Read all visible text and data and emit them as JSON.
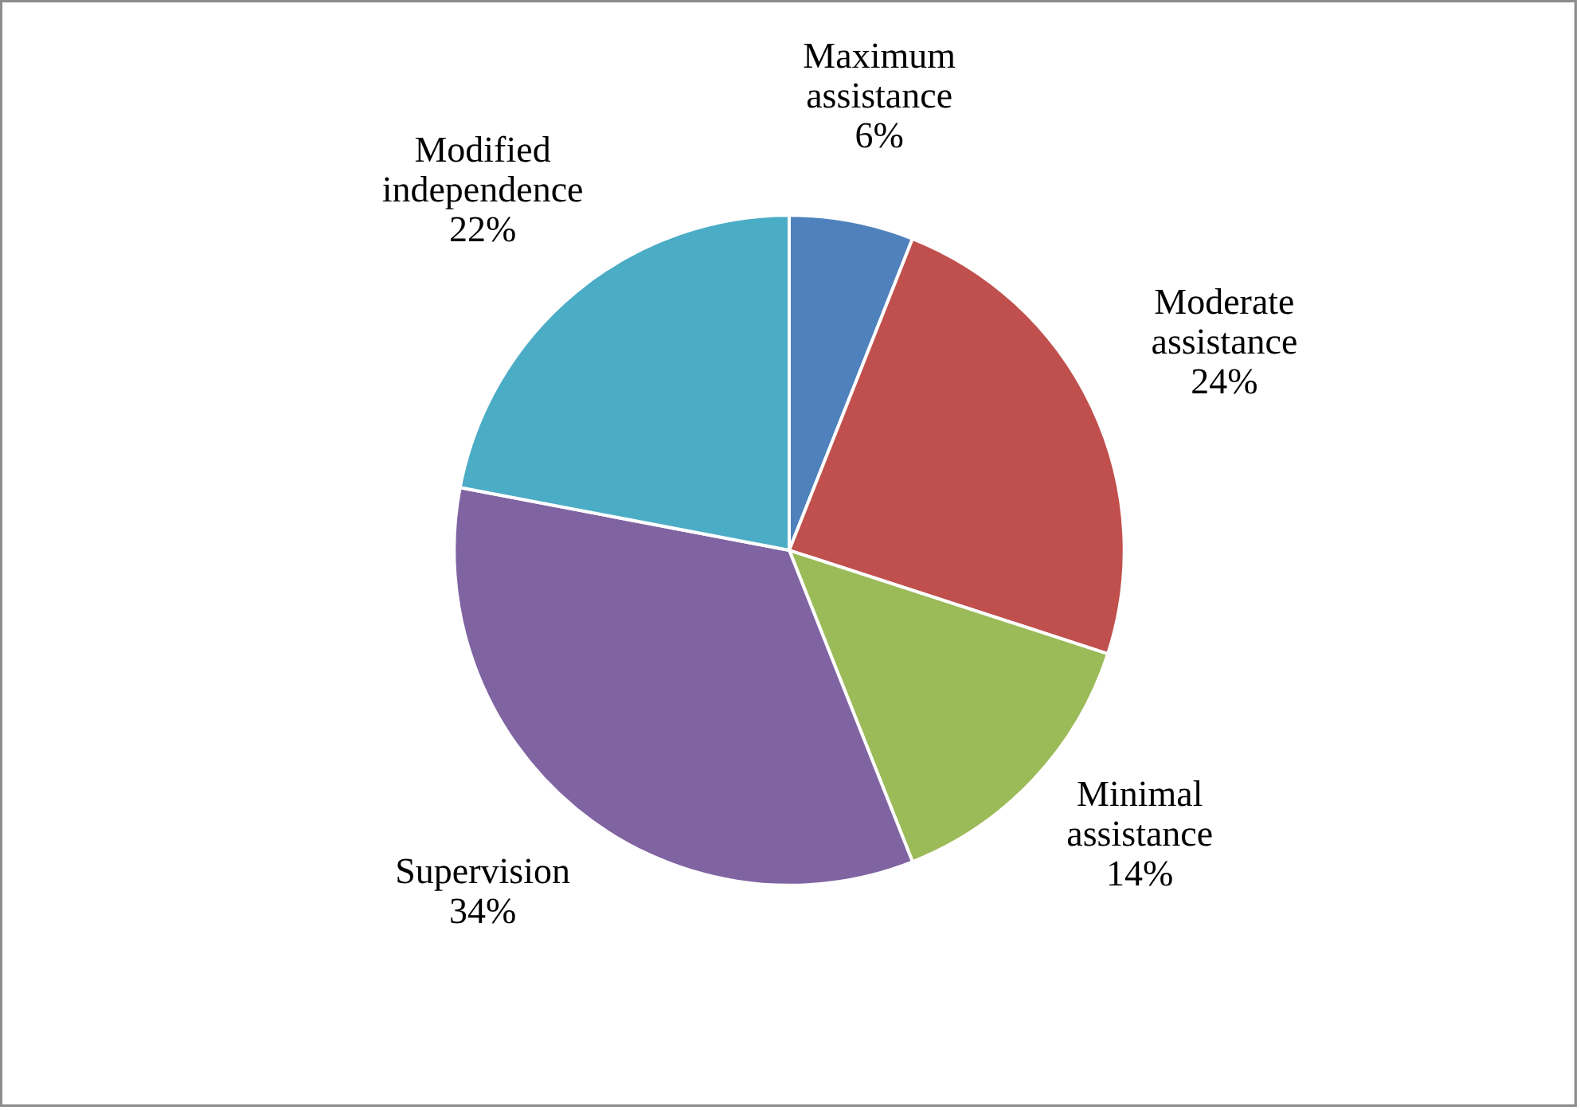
{
  "chart_data": {
    "type": "pie",
    "categories": [
      "Maximum assistance",
      "Moderate assistance",
      "Minimal assistance",
      "Supervision",
      "Modified independence"
    ],
    "values": [
      6,
      24,
      14,
      34,
      22
    ],
    "value_labels": [
      "6%",
      "24%",
      "14%",
      "34%",
      "22%"
    ],
    "colors": [
      "#4f81bd",
      "#c0504d",
      "#9bbb59",
      "#8064a2",
      "#4bacc6"
    ]
  }
}
